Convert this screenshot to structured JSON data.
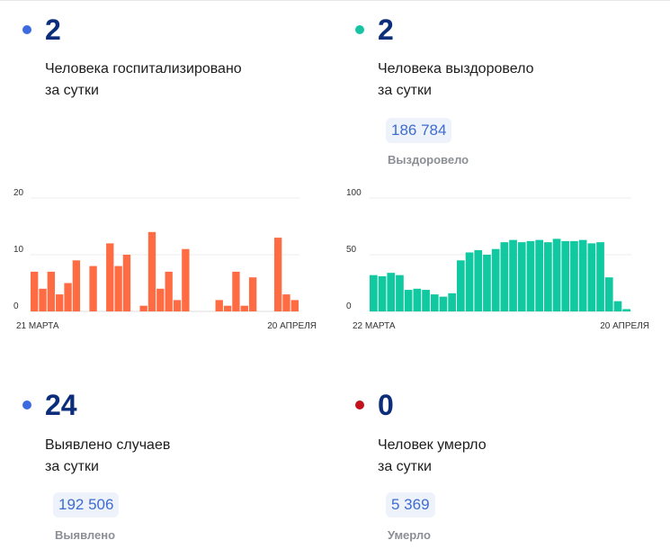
{
  "colors": {
    "hosp": "#3e6ae1",
    "recov": "#17c3a5",
    "cases": "#3e6ae1",
    "died": "#c3121b",
    "bar_hosp": "#ff6b42",
    "bar_recov": "#10c9a0",
    "number": "#0b2d7a"
  },
  "hospitalized": {
    "value": "2",
    "line1": "Человека госпитализировано",
    "line2": "за сутки"
  },
  "recovered": {
    "value": "2",
    "line1": "Человека выздоровело",
    "line2": "за сутки",
    "total": "186 784",
    "total_label": "Выздоровело"
  },
  "cases": {
    "value": "24",
    "line1": "Выявлено случаев",
    "line2": "за сутки",
    "total": "192 506",
    "total_label": "Выявлено"
  },
  "deaths": {
    "value": "0",
    "line1": "Человек умерло",
    "line2": "за сутки",
    "total": "5 369",
    "total_label": "Умерло"
  },
  "chart_data": [
    {
      "type": "bar",
      "series_color": "#ff6b42",
      "x_start_label": "21 МАРТА",
      "x_end_label": "20 АПРЕЛЯ",
      "ylim": [
        0,
        20
      ],
      "yticks": [
        "0",
        "10",
        "20"
      ],
      "values": [
        7,
        4,
        7,
        3,
        5,
        9,
        0,
        8,
        0,
        12,
        8,
        10,
        0,
        1,
        14,
        4,
        7,
        2,
        11,
        0,
        0,
        0,
        2,
        1,
        7,
        1,
        6,
        0,
        0,
        13,
        3,
        2
      ]
    },
    {
      "type": "bar",
      "series_color": "#10c9a0",
      "x_start_label": "22 МАРТА",
      "x_end_label": "20 АПРЕЛЯ",
      "ylim": [
        0,
        100
      ],
      "yticks": [
        "0",
        "50",
        "100"
      ],
      "values": [
        32,
        31,
        34,
        32,
        19,
        20,
        19,
        15,
        13,
        16,
        45,
        52,
        54,
        50,
        55,
        61,
        63,
        61,
        62,
        63,
        61,
        64,
        62,
        62,
        63,
        60,
        61,
        30,
        9,
        2
      ]
    }
  ]
}
